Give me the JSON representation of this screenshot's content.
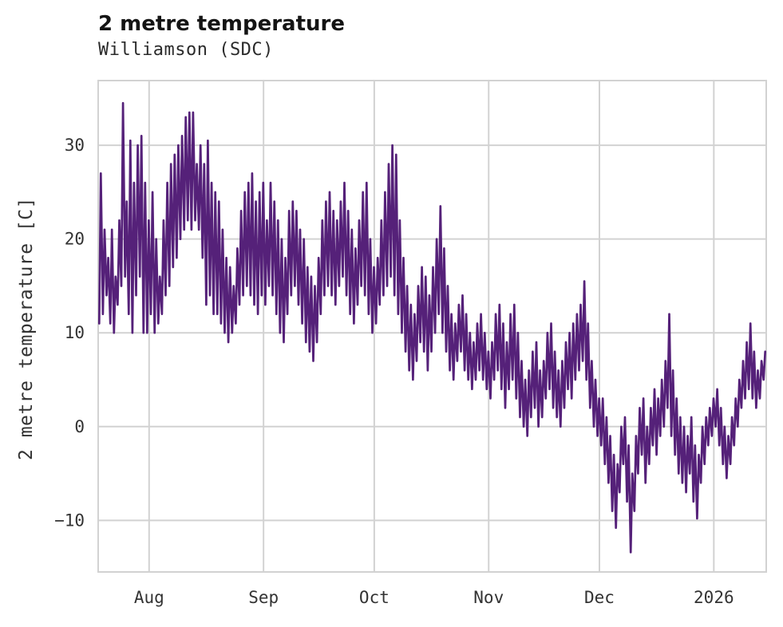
{
  "chart_data": {
    "type": "line",
    "title": "2 metre temperature",
    "subtitle": "Williamson (SDC)",
    "ylabel": "2 metre temperature [C]",
    "xlabel": "",
    "legend": "none",
    "grid": true,
    "line_color": "#552179",
    "grid_color": "#d2d2d2",
    "background": "#ffffff",
    "ylim": [
      -15.5,
      36.9
    ],
    "xlim_days": [
      0,
      181
    ],
    "y_ticks": [
      {
        "v": 30,
        "label": "30"
      },
      {
        "v": 20,
        "label": "20"
      },
      {
        "v": 10,
        "label": "10"
      },
      {
        "v": 0,
        "label": "0"
      },
      {
        "v": -10,
        "label": "−10"
      }
    ],
    "x_ticks": [
      {
        "label": "Aug",
        "day": 13.8
      },
      {
        "label": "Sep",
        "day": 44.8
      },
      {
        "label": "Oct",
        "day": 74.8
      },
      {
        "label": "Nov",
        "day": 105.8
      },
      {
        "label": "Dec",
        "day": 135.8
      },
      {
        "label": "2026",
        "day": 166.8
      }
    ],
    "series_name": "2 metre temperature",
    "x_unit": "day index (two samples per day: daily min, daily max)",
    "daily_min_max": [
      [
        11,
        27
      ],
      [
        12,
        21
      ],
      [
        14,
        18
      ],
      [
        11,
        21
      ],
      [
        10,
        16
      ],
      [
        13,
        22
      ],
      [
        15,
        34.5
      ],
      [
        16,
        24
      ],
      [
        12,
        30.5
      ],
      [
        10,
        26
      ],
      [
        14,
        30
      ],
      [
        16,
        31
      ],
      [
        10,
        26
      ],
      [
        10,
        22
      ],
      [
        12,
        25
      ],
      [
        10,
        20
      ],
      [
        11,
        16
      ],
      [
        12,
        22
      ],
      [
        14,
        26
      ],
      [
        15,
        28
      ],
      [
        17,
        29
      ],
      [
        18,
        30
      ],
      [
        20,
        31
      ],
      [
        21,
        33
      ],
      [
        22,
        33.5
      ],
      [
        21,
        33.5
      ],
      [
        22,
        28
      ],
      [
        21,
        30
      ],
      [
        18,
        28
      ],
      [
        13,
        30.5
      ],
      [
        14,
        26
      ],
      [
        12,
        25
      ],
      [
        12,
        24
      ],
      [
        11,
        21
      ],
      [
        10,
        18
      ],
      [
        9,
        17
      ],
      [
        10,
        15
      ],
      [
        11,
        19
      ],
      [
        13,
        23
      ],
      [
        14,
        25
      ],
      [
        15,
        26
      ],
      [
        14,
        27
      ],
      [
        13,
        24
      ],
      [
        12,
        25
      ],
      [
        14,
        26
      ],
      [
        13,
        22
      ],
      [
        15,
        26
      ],
      [
        14,
        24
      ],
      [
        12,
        22
      ],
      [
        10,
        20
      ],
      [
        9,
        18
      ],
      [
        12,
        23
      ],
      [
        14,
        24
      ],
      [
        15,
        23
      ],
      [
        13,
        21
      ],
      [
        11,
        20
      ],
      [
        9,
        17
      ],
      [
        8,
        16
      ],
      [
        7,
        15
      ],
      [
        9,
        18
      ],
      [
        12,
        22
      ],
      [
        14,
        24
      ],
      [
        15,
        25
      ],
      [
        14,
        23
      ],
      [
        13,
        22
      ],
      [
        15,
        24
      ],
      [
        16,
        26
      ],
      [
        14,
        23
      ],
      [
        12,
        21
      ],
      [
        11,
        19
      ],
      [
        13,
        22
      ],
      [
        15,
        25
      ],
      [
        14,
        26
      ],
      [
        12,
        20
      ],
      [
        10,
        17
      ],
      [
        11,
        18
      ],
      [
        13,
        22
      ],
      [
        14,
        25
      ],
      [
        15,
        28
      ],
      [
        16,
        30
      ],
      [
        14,
        29
      ],
      [
        12,
        22
      ],
      [
        10,
        18
      ],
      [
        8,
        15
      ],
      [
        6,
        13
      ],
      [
        5,
        12
      ],
      [
        7,
        15
      ],
      [
        9,
        17
      ],
      [
        8,
        16
      ],
      [
        6,
        14
      ],
      [
        8,
        17
      ],
      [
        10,
        20
      ],
      [
        12,
        23.5
      ],
      [
        10,
        19
      ],
      [
        8,
        15
      ],
      [
        6,
        12
      ],
      [
        5,
        11
      ],
      [
        7,
        13
      ],
      [
        8,
        14
      ],
      [
        6,
        12
      ],
      [
        5,
        10
      ],
      [
        4,
        9
      ],
      [
        5,
        11
      ],
      [
        6,
        12
      ],
      [
        5,
        10
      ],
      [
        4,
        8
      ],
      [
        3,
        9
      ],
      [
        5,
        12
      ],
      [
        6,
        13
      ],
      [
        4,
        11
      ],
      [
        2,
        9
      ],
      [
        4,
        12
      ],
      [
        5,
        13
      ],
      [
        3,
        10
      ],
      [
        1,
        7
      ],
      [
        0,
        5
      ],
      [
        -1,
        6
      ],
      [
        1,
        8
      ],
      [
        2,
        9
      ],
      [
        0,
        6
      ],
      [
        1,
        7
      ],
      [
        3,
        10
      ],
      [
        4,
        11
      ],
      [
        2,
        8
      ],
      [
        1,
        6
      ],
      [
        0,
        7
      ],
      [
        2,
        9
      ],
      [
        4,
        10
      ],
      [
        3,
        11
      ],
      [
        5,
        12
      ],
      [
        6,
        13
      ],
      [
        7,
        15.5
      ],
      [
        5,
        11
      ],
      [
        2,
        7
      ],
      [
        0,
        5
      ],
      [
        -1,
        3
      ],
      [
        -2,
        3
      ],
      [
        -4,
        1
      ],
      [
        -6,
        -1
      ],
      [
        -9,
        -3
      ],
      [
        -10.8,
        -4
      ],
      [
        -7,
        0
      ],
      [
        -4,
        1
      ],
      [
        -8,
        -2
      ],
      [
        -13.4,
        -5
      ],
      [
        -9,
        -1
      ],
      [
        -5,
        2
      ],
      [
        -3,
        3
      ],
      [
        -6,
        0
      ],
      [
        -4,
        2
      ],
      [
        -2,
        4
      ],
      [
        -3,
        3
      ],
      [
        -1,
        5
      ],
      [
        0,
        7
      ],
      [
        2,
        12
      ],
      [
        -1,
        6
      ],
      [
        -3,
        3
      ],
      [
        -5,
        1
      ],
      [
        -6,
        0
      ],
      [
        -7,
        -1
      ],
      [
        -5,
        1
      ],
      [
        -8,
        -2
      ],
      [
        -9.8,
        -3
      ],
      [
        -6,
        0
      ],
      [
        -4,
        1
      ],
      [
        -2,
        2
      ],
      [
        -1,
        3
      ],
      [
        0,
        4
      ],
      [
        -2,
        2
      ],
      [
        -4,
        0
      ],
      [
        -5.5,
        -1
      ],
      [
        -4,
        1
      ],
      [
        -2,
        3
      ],
      [
        0,
        5
      ],
      [
        2,
        7
      ],
      [
        3,
        9
      ],
      [
        4,
        11
      ],
      [
        3,
        8
      ],
      [
        2,
        6
      ],
      [
        3,
        7
      ],
      [
        5,
        8
      ]
    ]
  }
}
